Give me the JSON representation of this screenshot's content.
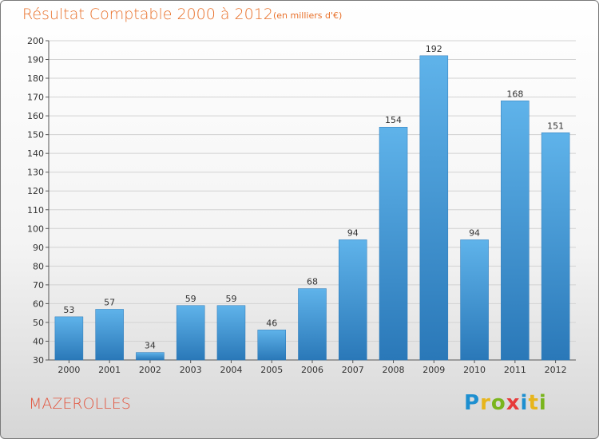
{
  "chart_data": {
    "type": "bar",
    "title": "Résultat Comptable 2000 à 2012",
    "subtitle": "(en milliers d'€)",
    "xlabel": "",
    "ylabel": "",
    "ylim": [
      30,
      200
    ],
    "ytick_step": 10,
    "grid": true,
    "categories": [
      "2000",
      "2001",
      "2002",
      "2003",
      "2004",
      "2005",
      "2006",
      "2007",
      "2008",
      "2009",
      "2010",
      "2011",
      "2012"
    ],
    "values": [
      53,
      57,
      34,
      59,
      59,
      46,
      68,
      94,
      154,
      192,
      94,
      168,
      151
    ],
    "bar_color": "#3d95d6",
    "bar_color_dark": "#2a78b8"
  },
  "footer": {
    "commune": "MAZEROLLES",
    "brand": {
      "letters": [
        "P",
        "r",
        "o",
        "x",
        "i",
        "t",
        "i"
      ],
      "colors": [
        "#1d8fd0",
        "#e7b51c",
        "#7ab51d",
        "#e73b3b",
        "#1d8fd0",
        "#e7b51c",
        "#7ab51d"
      ]
    }
  }
}
